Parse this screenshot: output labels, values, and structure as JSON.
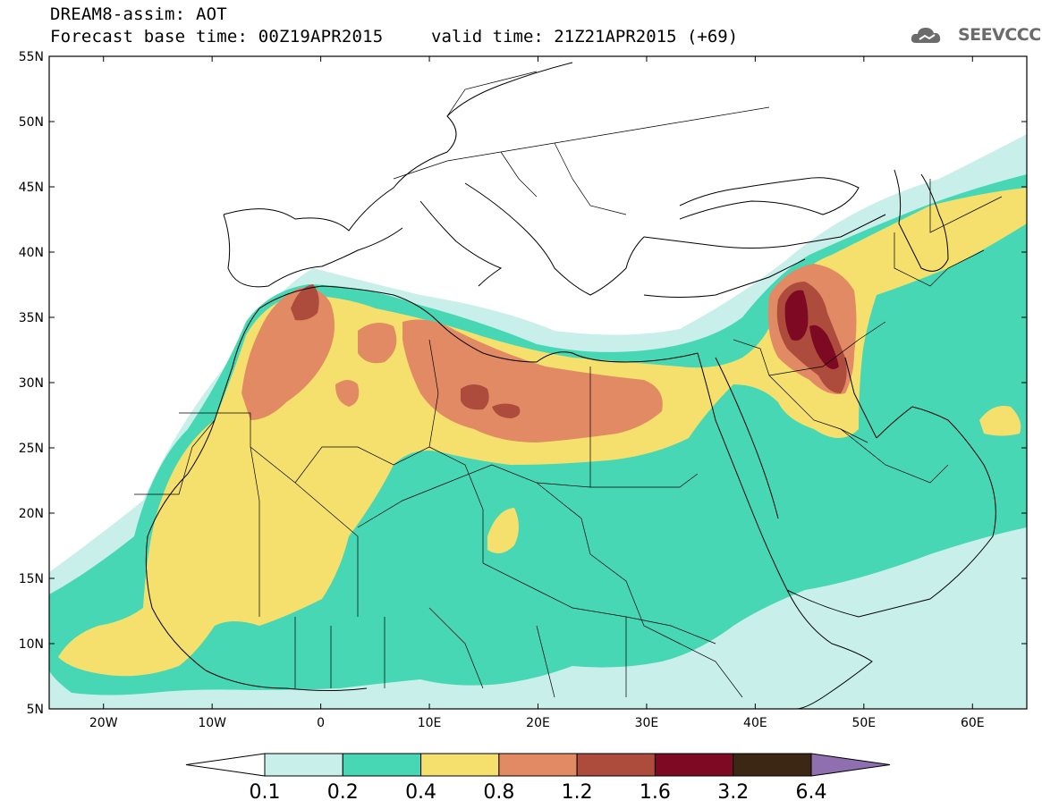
{
  "header": {
    "title": "DREAM8-assim: AOT",
    "base_time": "Forecast base time: 00Z19APR2015",
    "valid_time": "valid time: 21Z21APR2015 (+69)",
    "logo_text": "SEEVCCC"
  },
  "map": {
    "lat_labels": [
      "55N",
      "50N",
      "45N",
      "40N",
      "35N",
      "30N",
      "25N",
      "20N",
      "15N",
      "10N",
      "5N"
    ],
    "lon_labels": [
      "20W",
      "10W",
      "0",
      "10E",
      "20E",
      "30E",
      "40E",
      "50E",
      "60E"
    ],
    "extent": {
      "lon_min": -25,
      "lon_max": 65,
      "lat_min": 5,
      "lat_max": 55
    }
  },
  "colorbar": {
    "labels": [
      "0.1",
      "0.2",
      "0.4",
      "0.8",
      "1.2",
      "1.6",
      "3.2",
      "6.4"
    ],
    "colors": [
      "#ffffff",
      "#c8efe9",
      "#48d7b4",
      "#f5e06e",
      "#e28a64",
      "#ad4b3c",
      "#7d0a22",
      "#3c2614",
      "#8f6fb0"
    ]
  }
}
